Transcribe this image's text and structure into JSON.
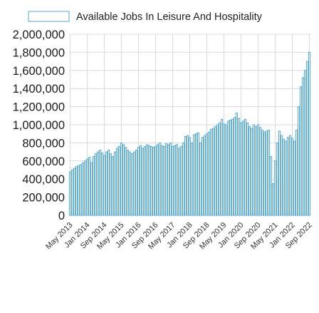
{
  "chart_data": {
    "type": "bar",
    "title": "",
    "xlabel": "",
    "ylabel": "",
    "ylim": [
      0,
      2000000
    ],
    "y_ticks": [
      "2,000,000",
      "1,800,000",
      "1,600,000",
      "1,400,000",
      "1,200,000",
      "1,000,000",
      "800,000",
      "600,000",
      "400,000",
      "200,000",
      "0"
    ],
    "x_ticks": [
      "May 2013",
      "Jan 2014",
      "Sep 2014",
      "May 2015",
      "Jan 2016",
      "Sep 2016",
      "May 2017",
      "Jan 2018",
      "Sep 2018",
      "May 2019",
      "Jan 2020",
      "Sep 2020",
      "May 2021",
      "Jan 2022",
      "Sep 2022"
    ],
    "grid": true,
    "legend_position": "top",
    "series": [
      {
        "name": "Available Jobs In Leisure And Hospitality",
        "color": "#4fa8d6",
        "values": [
          480000,
          500000,
          520000,
          540000,
          550000,
          560000,
          580000,
          600000,
          620000,
          640000,
          580000,
          650000,
          680000,
          700000,
          720000,
          690000,
          660000,
          700000,
          720000,
          680000,
          650000,
          700000,
          740000,
          760000,
          800000,
          780000,
          750000,
          720000,
          700000,
          680000,
          700000,
          720000,
          750000,
          770000,
          740000,
          760000,
          780000,
          770000,
          760000,
          750000,
          760000,
          780000,
          800000,
          770000,
          760000,
          790000,
          780000,
          800000,
          760000,
          770000,
          780000,
          740000,
          760000,
          800000,
          870000,
          880000,
          860000,
          800000,
          890000,
          900000,
          910000,
          800000,
          860000,
          880000,
          900000,
          920000,
          950000,
          960000,
          980000,
          1000000,
          1020000,
          1060000,
          1010000,
          1000000,
          1040000,
          1050000,
          1060000,
          1080000,
          1130000,
          1070000,
          1020000,
          1040000,
          1060000,
          1020000,
          980000,
          960000,
          1000000,
          980000,
          1000000,
          970000,
          940000,
          920000,
          930000,
          940000,
          650000,
          350000,
          600000,
          800000,
          930000,
          880000,
          840000,
          820000,
          860000,
          880000,
          850000,
          820000,
          940000,
          1200000,
          1420000,
          1520000,
          1600000,
          1700000,
          1800000
        ]
      }
    ]
  }
}
